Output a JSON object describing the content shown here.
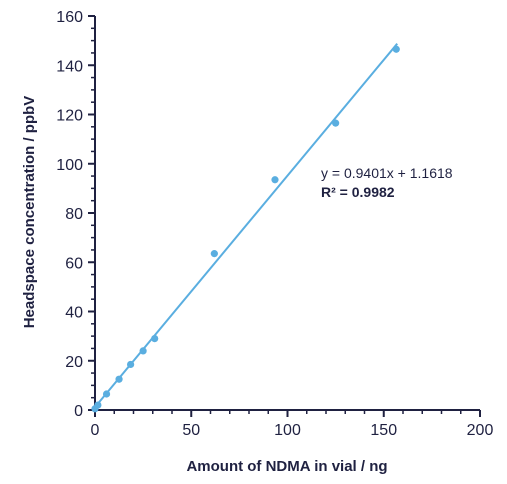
{
  "chart_data": {
    "type": "scatter",
    "xlabel": "Amount of NDMA in vial / ng",
    "ylabel": "Headspace concentration / ppbV",
    "xlim": [
      0,
      200
    ],
    "ylim": [
      0,
      160
    ],
    "xticks": [
      0,
      50,
      100,
      150,
      200
    ],
    "yticks": [
      0,
      20,
      40,
      60,
      80,
      100,
      120,
      140,
      160
    ],
    "grid": false,
    "series": [
      {
        "x": [
          0,
          1.5,
          6,
          12.5,
          18.5,
          25,
          31,
          62,
          93.5,
          125,
          156.5
        ],
        "y": [
          0.5,
          2,
          6.5,
          12.5,
          18.5,
          24,
          29,
          63.5,
          93.5,
          116.5,
          146.5
        ]
      }
    ],
    "trendline": {
      "slope": 0.9401,
      "intercept": 1.1618,
      "x_range": [
        0,
        157
      ],
      "equation": "y = 0.9401x + 1.1618",
      "r2_label": "R² = 0.9982"
    },
    "colors": {
      "points": "#5aaee0",
      "line": "#5aaee0",
      "axis": "#1f2141"
    }
  }
}
